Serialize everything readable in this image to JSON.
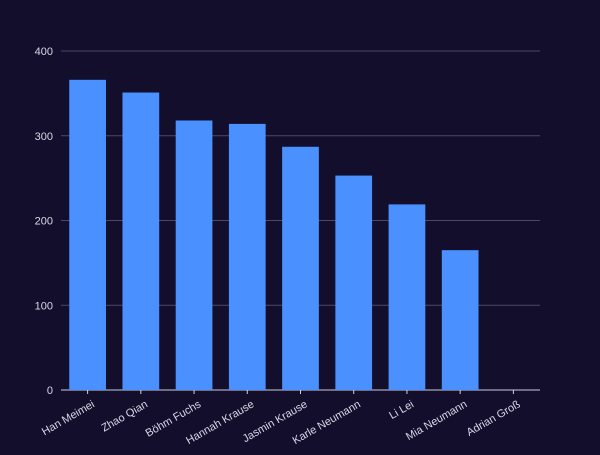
{
  "colors": {
    "background": "#120e2b",
    "bar": "#4a90ff",
    "grid": "#4a4866",
    "axis": "#cfcfe0",
    "text": "#d8d8e8"
  },
  "chart_data": {
    "type": "bar",
    "title": "",
    "xlabel": "",
    "ylabel": "",
    "ylim": [
      0,
      400
    ],
    "yticks": [
      0,
      100,
      200,
      300,
      400
    ],
    "grid": true,
    "categories": [
      "Han Meimei",
      "Zhao Qian",
      "Böhm Fuchs",
      "Hannah Krause",
      "Jasmin Krause",
      "Karle Neumann",
      "Li Lei",
      "Mia Neumann",
      "Adrian Groß"
    ],
    "values": [
      366,
      351,
      318,
      314,
      287,
      253,
      219,
      165,
      0
    ]
  }
}
